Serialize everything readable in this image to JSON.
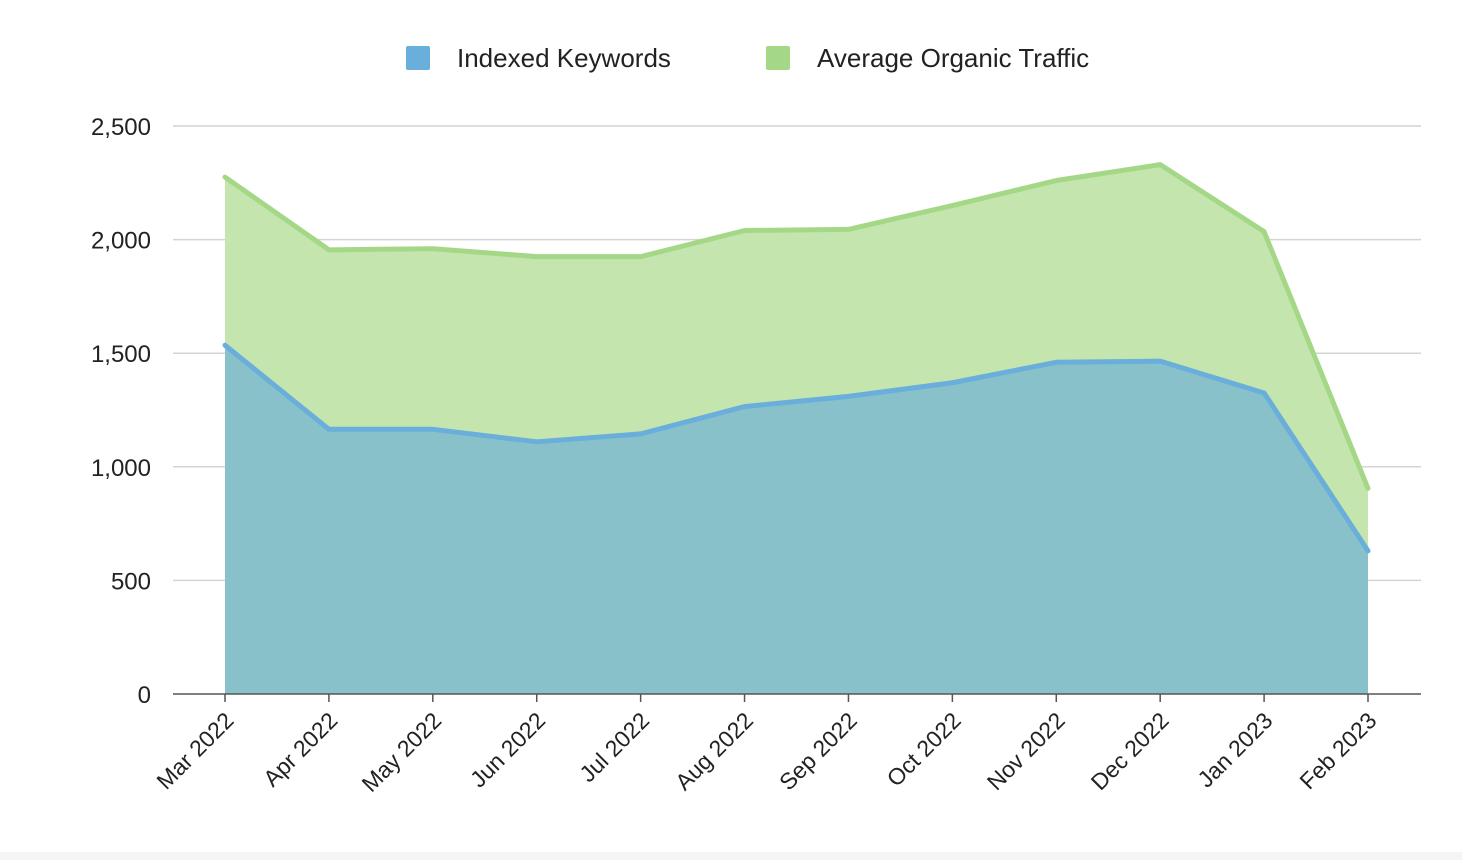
{
  "chart_data": {
    "type": "area",
    "stacked": true,
    "title": "",
    "xlabel": "",
    "ylabel": "",
    "ylim": [
      0,
      2500
    ],
    "yticks": [
      0,
      500,
      1000,
      1500,
      2000,
      2500
    ],
    "ytick_labels": [
      "0",
      "500",
      "1,000",
      "1,500",
      "2,000",
      "2,500"
    ],
    "grid": true,
    "legend_position": "top-center",
    "categories": [
      "Mar 2022",
      "Apr 2022",
      "May 2022",
      "Jun 2022",
      "Jul 2022",
      "Aug 2022",
      "Sep 2022",
      "Oct 2022",
      "Nov 2022",
      "Dec 2022",
      "Jan 2023",
      "Feb 2023"
    ],
    "series": [
      {
        "name": "Indexed Keywords",
        "color": "#6aaedb",
        "fill": "#89c1cb",
        "values": [
          1535,
          1165,
          1165,
          1110,
          1145,
          1265,
          1310,
          1370,
          1460,
          1465,
          1325,
          630
        ]
      },
      {
        "name": "Average Organic Traffic",
        "color": "#a4d886",
        "fill": "#c5e5af",
        "values": [
          740,
          790,
          795,
          815,
          780,
          775,
          735,
          780,
          800,
          865,
          710,
          275
        ]
      }
    ]
  }
}
